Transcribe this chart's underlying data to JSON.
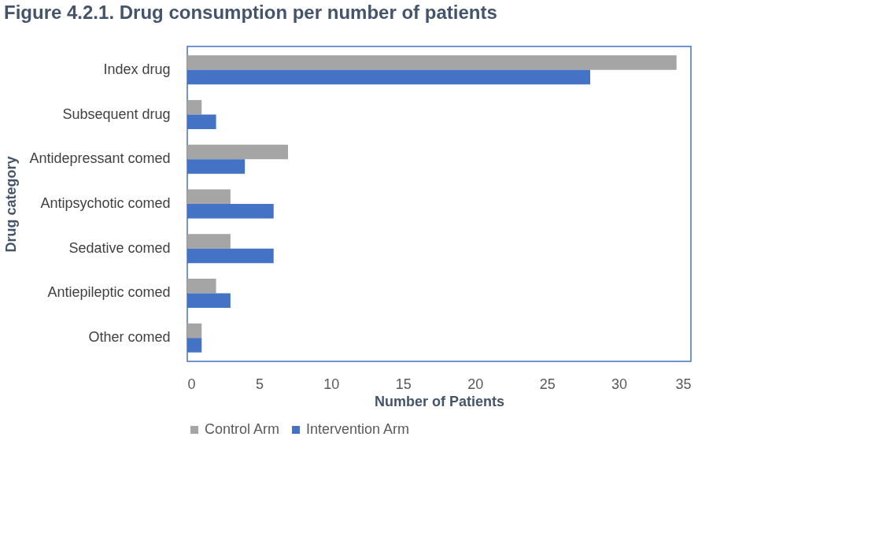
{
  "chart_data": {
    "type": "bar",
    "orientation": "horizontal",
    "title": "Figure 4.2.1. Drug consumption  per number of patients",
    "xlabel": "Number of Patients",
    "ylabel": "Drug category",
    "categories": [
      "Index drug",
      "Subsequent drug",
      "Antidepressant comed",
      "Antipsychotic comed",
      "Sedative comed",
      "Antiepileptic comed",
      "Other comed"
    ],
    "series": [
      {
        "name": "Control Arm",
        "color": "#a5a5a5",
        "values": [
          34,
          1,
          7,
          3,
          3,
          2,
          1
        ]
      },
      {
        "name": "Intervention Arm",
        "color": "#4472c4",
        "values": [
          28,
          2,
          4,
          6,
          6,
          3,
          1
        ]
      }
    ],
    "xlim": [
      0,
      35
    ],
    "xticks": [
      0,
      5,
      10,
      15,
      20,
      25,
      30,
      35
    ],
    "grid": false,
    "legend": "bottom"
  }
}
